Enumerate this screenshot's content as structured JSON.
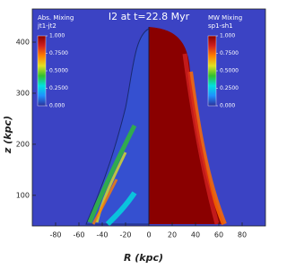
{
  "chart_data": {
    "type": "image",
    "title": "I2 at t=22.8 Myr",
    "xlabel": "R (kpc)",
    "ylabel": "z (kpc)",
    "xlim": [
      -100,
      100
    ],
    "xticks": [
      -80,
      -60,
      -40,
      -20,
      0,
      20,
      40,
      60,
      80
    ],
    "ylim": [
      40,
      465
    ],
    "yticks": [
      100,
      200,
      300,
      400
    ],
    "colorbars": [
      {
        "title": "Abs. Mixing",
        "subtitle": "jt1-jt2",
        "side": "left",
        "lim": [
          0,
          1
        ],
        "ticks": [
          {
            "value": 1,
            "label": "1.000"
          },
          {
            "value": 0.75,
            "label": "0.7500"
          },
          {
            "value": 0.5,
            "label": "0.5000"
          },
          {
            "value": 0.25,
            "label": "0.2500"
          },
          {
            "value": 0,
            "label": "0.000"
          }
        ],
        "colors": [
          "#2b2f9a",
          "#1e90ff",
          "#00e0e0",
          "#30c030",
          "#e0e020",
          "#ff8000",
          "#d02020",
          "#8a0000"
        ]
      },
      {
        "title": "MW Mixing",
        "subtitle": "sp1-sh1",
        "side": "right",
        "lim": [
          0,
          1
        ],
        "ticks": [
          {
            "value": 1,
            "label": "1.000"
          },
          {
            "value": 0.75,
            "label": "0.7500"
          },
          {
            "value": 0.5,
            "label": "0.5000"
          },
          {
            "value": 0.25,
            "label": "0.2500"
          },
          {
            "value": 0,
            "label": "0.000"
          }
        ],
        "colors": [
          "#2b2f9a",
          "#1e90ff",
          "#00e0e0",
          "#30c030",
          "#e0e020",
          "#ff8000",
          "#d02020",
          "#8a0000"
        ]
      }
    ]
  }
}
